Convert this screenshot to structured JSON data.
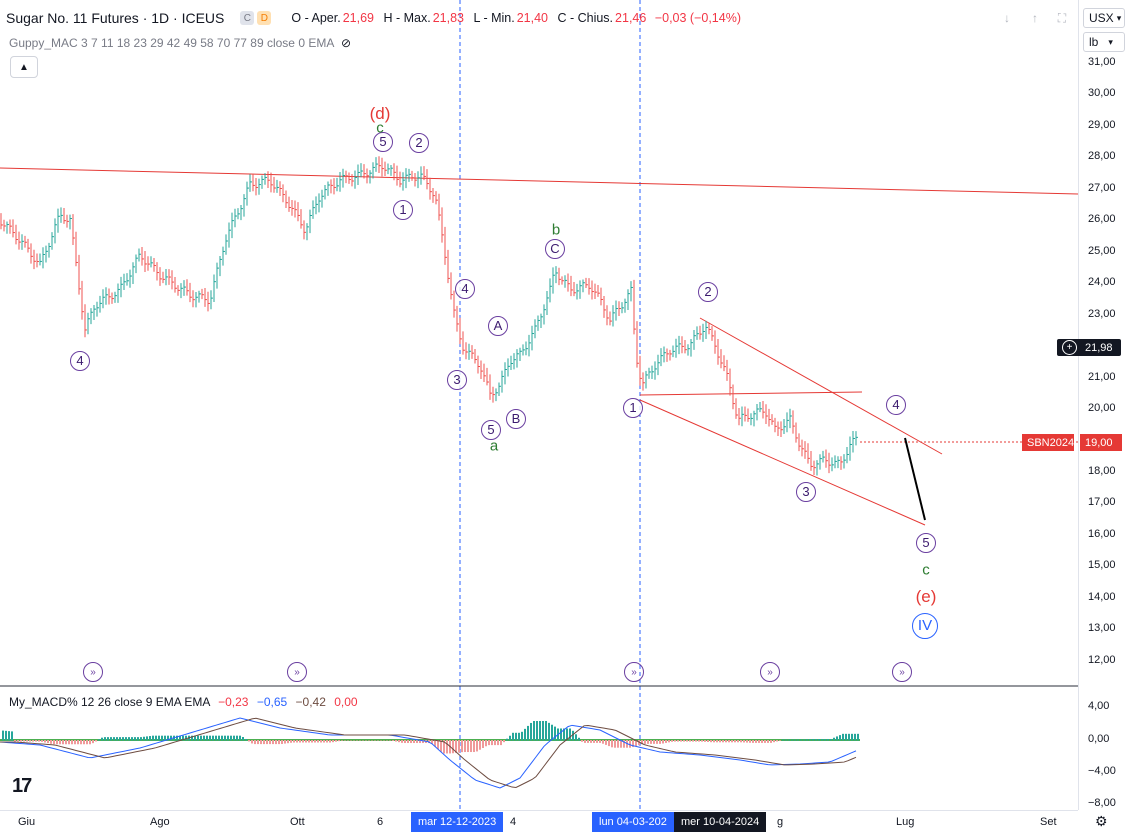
{
  "header": {
    "symbol_title": "Sugar No. 11 Futures · 1D · ICEUS",
    "badge_c": "C",
    "badge_d": "D",
    "ohlc": {
      "o_label": "O - Aper.",
      "o_value": "21,69",
      "h_label": "H - Max.",
      "h_value": "21,83",
      "l_label": "L - Min.",
      "l_value": "21,40",
      "c_label": "C - Chius.",
      "c_value": "21,46",
      "change": "−0,03 (−0,14%)"
    }
  },
  "indicators": {
    "guppy": "Guppy_MAC 3 7 11 18 23 29 42 49 58 70 77 89 close 0 EMA",
    "macd_name": "My_MACD% 12 26 close 9 EMA EMA",
    "macd_v1": "−0,23",
    "macd_v2": "−0,65",
    "macd_v3": "−0,42",
    "macd_v4": "0,00"
  },
  "toolbar": {
    "currency": "USX",
    "unit": "lb"
  },
  "price_axis": [
    "31,00",
    "30,00",
    "29,00",
    "28,00",
    "27,00",
    "26,00",
    "25,00",
    "24,00",
    "23,00",
    "22,00",
    "21,00",
    "20,00",
    "19,00",
    "18,00",
    "17,00",
    "16,00",
    "15,00",
    "14,00",
    "13,00",
    "12,00"
  ],
  "crosshair_price": "21,98",
  "series_tag": {
    "name": "SBN2024",
    "price": "19,00"
  },
  "macd_axis": [
    "4,00",
    "0,00",
    "−4,00",
    "−8,00"
  ],
  "time_axis": [
    "Giu",
    "Ago",
    "Ott",
    "6",
    "4",
    "g",
    "Lug",
    "Set"
  ],
  "time_highlights": [
    "mar 12-12-2023",
    "lun 04-03-202",
    "mer 10-04-2024"
  ],
  "waves": {
    "purple_circles": [
      "4",
      "5",
      "2",
      "1",
      "4",
      "3",
      "A",
      "B",
      "5",
      "C",
      "1",
      "2",
      "3",
      "4",
      "5"
    ],
    "green": [
      "c",
      "a",
      "b",
      "c"
    ],
    "red": [
      "(d)",
      "(e)"
    ],
    "roman": "IV"
  },
  "colors": {
    "up": "#26a69a",
    "down": "#ef5350",
    "accent": "#2962ff",
    "wave": "#6a3fa0"
  }
}
